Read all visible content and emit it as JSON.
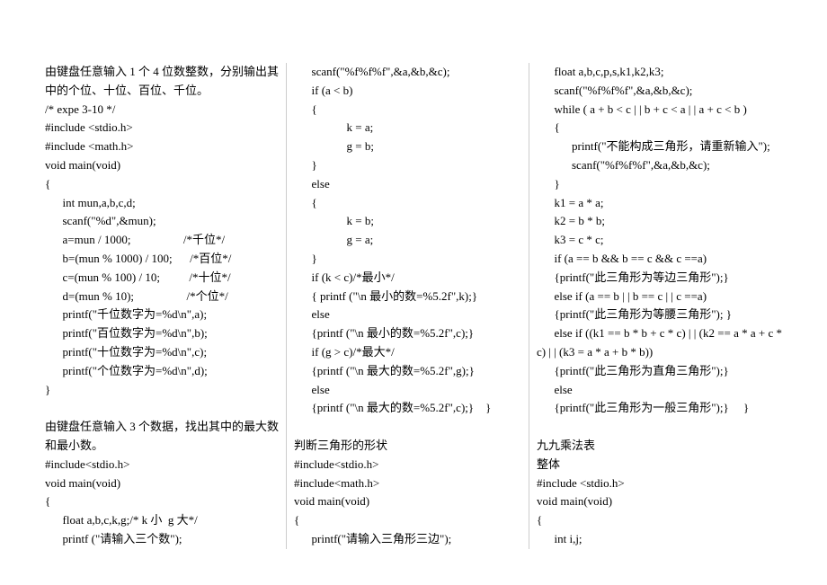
{
  "col1": [
    {
      "t": "由键盘任意输入 1 个 4 位数整数，分别输出其",
      "i": 0
    },
    {
      "t": "中的个位、十位、百位、千位。",
      "i": 0
    },
    {
      "t": "/* expe 3-10 */",
      "i": 0
    },
    {
      "t": "#include <stdio.h>",
      "i": 0
    },
    {
      "t": "#include <math.h>",
      "i": 0
    },
    {
      "t": "void main(void)",
      "i": 0
    },
    {
      "t": "{",
      "i": 0
    },
    {
      "t": "int mun,a,b,c,d;",
      "i": 1
    },
    {
      "t": "scanf(\"%d\",&mun);",
      "i": 1
    },
    {
      "t": "a=mun / 1000;                  /*千位*/",
      "i": 1
    },
    {
      "t": "b=(mun % 1000) / 100;      /*百位*/",
      "i": 1
    },
    {
      "t": "c=(mun % 100) / 10;          /*十位*/",
      "i": 1
    },
    {
      "t": "d=(mun % 10);                  /*个位*/",
      "i": 1
    },
    {
      "t": "printf(\"千位数字为=%d\\n\",a);",
      "i": 1
    },
    {
      "t": "printf(\"百位数字为=%d\\n\",b);",
      "i": 1
    },
    {
      "t": "printf(\"十位数字为=%d\\n\",c);",
      "i": 1
    },
    {
      "t": "printf(\"个位数字为=%d\\n\",d);",
      "i": 1
    },
    {
      "t": "}",
      "i": 0
    },
    {
      "t": "",
      "i": 0,
      "blank": true
    },
    {
      "t": "由键盘任意输入 3 个数据，找出其中的最大数",
      "i": 0
    },
    {
      "t": "和最小数。",
      "i": 0
    },
    {
      "t": "#include<stdio.h>",
      "i": 0
    },
    {
      "t": "void main(void)",
      "i": 0
    },
    {
      "t": "{",
      "i": 0
    },
    {
      "t": "float a,b,c,k,g;/* k 小  g 大*/",
      "i": 1
    },
    {
      "t": "printf (\"请输入三个数\");",
      "i": 1
    }
  ],
  "col2": [
    {
      "t": "scanf(\"%f%f%f\",&a,&b,&c);",
      "i": 1
    },
    {
      "t": "if (a < b)",
      "i": 1
    },
    {
      "t": "{",
      "i": 1
    },
    {
      "t": "k = a;",
      "i": 3
    },
    {
      "t": "g = b;",
      "i": 3
    },
    {
      "t": "}",
      "i": 1
    },
    {
      "t": "else",
      "i": 1
    },
    {
      "t": "{",
      "i": 1
    },
    {
      "t": "k = b;",
      "i": 3
    },
    {
      "t": "g = a;",
      "i": 3
    },
    {
      "t": "}",
      "i": 1
    },
    {
      "t": "if (k < c)/*最小*/",
      "i": 1
    },
    {
      "t": "{ printf (\"\\n 最小的数=%5.2f\",k);}",
      "i": 1
    },
    {
      "t": "else",
      "i": 1
    },
    {
      "t": "{printf (\"\\n 最小的数=%5.2f\",c);}",
      "i": 1
    },
    {
      "t": "if (g > c)/*最大*/",
      "i": 1
    },
    {
      "t": "{printf (\"\\n 最大的数=%5.2f\",g);}",
      "i": 1
    },
    {
      "t": "else",
      "i": 1
    },
    {
      "t": "{printf (\"\\n 最大的数=%5.2f\",c);}    }",
      "i": 1
    },
    {
      "t": "",
      "i": 0,
      "blank": true
    },
    {
      "t": "判断三角形的形状",
      "i": 0
    },
    {
      "t": "#include<stdio.h>",
      "i": 0
    },
    {
      "t": "#include<math.h>",
      "i": 0
    },
    {
      "t": "void main(void)",
      "i": 0
    },
    {
      "t": "{",
      "i": 0
    },
    {
      "t": "printf(\"请输入三角形三边\");",
      "i": 1
    }
  ],
  "col3": [
    {
      "t": "float a,b,c,p,s,k1,k2,k3;",
      "i": 1
    },
    {
      "t": "scanf(\"%f%f%f\",&a,&b,&c);",
      "i": 1
    },
    {
      "t": "while ( a + b < c | | b + c < a | | a + c < b )",
      "i": 1
    },
    {
      "t": "{",
      "i": 1
    },
    {
      "t": "printf(\"不能构成三角形，请重新输入\");",
      "i": 2
    },
    {
      "t": "scanf(\"%f%f%f\",&a,&b,&c);",
      "i": 2
    },
    {
      "t": "}",
      "i": 1
    },
    {
      "t": "k1 = a * a;",
      "i": 1
    },
    {
      "t": "k2 = b * b;",
      "i": 1
    },
    {
      "t": "k3 = c * c;",
      "i": 1
    },
    {
      "t": "if (a == b && b == c && c ==a)",
      "i": 1
    },
    {
      "t": "{printf(\"此三角形为等边三角形\");}",
      "i": 1
    },
    {
      "t": "else if (a == b | | b == c | | c ==a)",
      "i": 1
    },
    {
      "t": "{printf(\"此三角形为等腰三角形\"); }",
      "i": 1
    },
    {
      "t": "else if ((k1 == b * b + c * c) | | (k2 == a * a + c *",
      "i": 1
    },
    {
      "t": "c) | | (k3 = a * a + b * b))",
      "i": 0
    },
    {
      "t": "{printf(\"此三角形为直角三角形\");}",
      "i": 1
    },
    {
      "t": "else",
      "i": 1
    },
    {
      "t": "{printf(\"此三角形为一般三角形\");}     }",
      "i": 1
    },
    {
      "t": "",
      "i": 0,
      "blank": true
    },
    {
      "t": "九九乘法表",
      "i": 0
    },
    {
      "t": "整体",
      "i": 0
    },
    {
      "t": "#include <stdio.h>",
      "i": 0
    },
    {
      "t": "void main(void)",
      "i": 0
    },
    {
      "t": "{",
      "i": 0
    },
    {
      "t": "int i,j;",
      "i": 1
    }
  ]
}
